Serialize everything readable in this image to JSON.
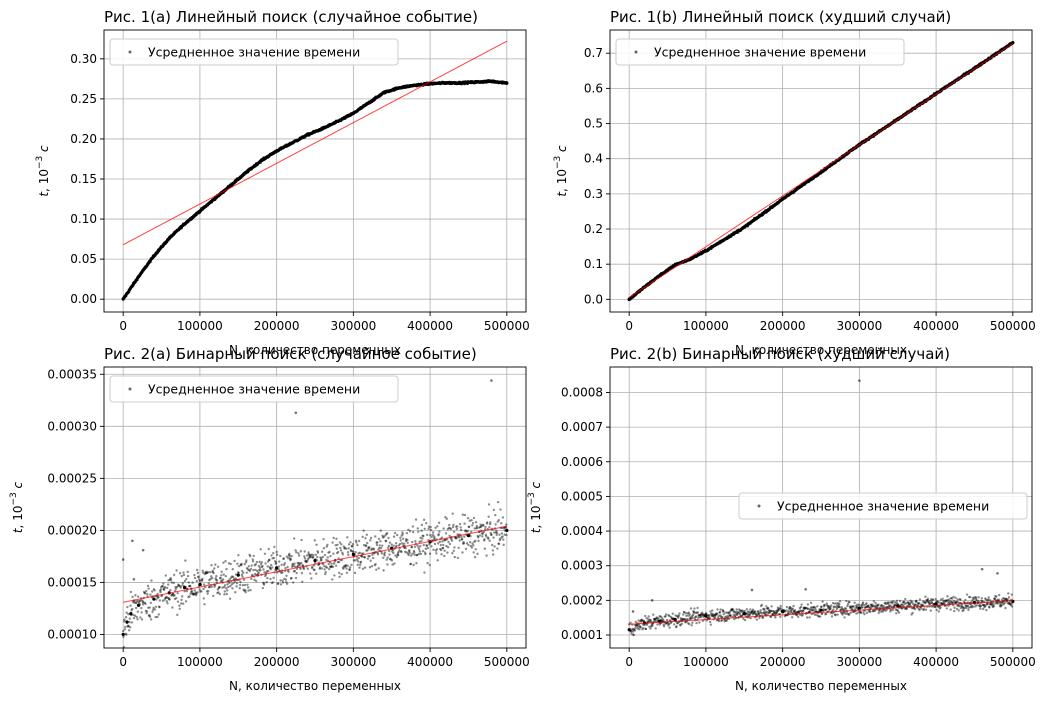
{
  "chart_data": [
    {
      "type": "scatter",
      "title": "Рис. 1(a) Линейный поиск (случайное событие)",
      "xlabel": "N, количество переменных",
      "ylabel": "t, 10^-3 с",
      "xlim": [
        -25000,
        525000
      ],
      "ylim": [
        -0.016,
        0.336
      ],
      "xticks": [
        0,
        100000,
        200000,
        300000,
        400000,
        500000
      ],
      "yticks": [
        0.0,
        0.05,
        0.1,
        0.15,
        0.2,
        0.25,
        0.3
      ],
      "ytick_labels": [
        "0.00",
        "0.05",
        "0.10",
        "0.15",
        "0.20",
        "0.25",
        "0.30"
      ],
      "grid": true,
      "legend": {
        "position": "upper-left",
        "label": "Усредненное значение времени"
      },
      "series": [
        {
          "name": "Усредненное значение времени",
          "style": "points",
          "color": "#000000",
          "x": [
            0,
            20000,
            40000,
            60000,
            80000,
            100000,
            120000,
            140000,
            160000,
            180000,
            200000,
            220000,
            240000,
            260000,
            280000,
            300000,
            320000,
            340000,
            360000,
            380000,
            400000,
            420000,
            440000,
            460000,
            480000,
            500000
          ],
          "y": [
            0.0,
            0.028,
            0.054,
            0.076,
            0.094,
            0.11,
            0.126,
            0.142,
            0.158,
            0.173,
            0.185,
            0.195,
            0.205,
            0.213,
            0.222,
            0.232,
            0.245,
            0.258,
            0.264,
            0.267,
            0.269,
            0.27,
            0.27,
            0.271,
            0.272,
            0.27
          ]
        },
        {
          "name": "",
          "style": "line",
          "color": "#ff0000",
          "x": [
            0,
            500000
          ],
          "y": [
            0.068,
            0.322
          ]
        }
      ]
    },
    {
      "type": "scatter",
      "title": "Рис. 1(b) Линейный поиск (худший случай)",
      "xlabel": "N, количество переменных",
      "ylabel": "t, 10^-3 с",
      "xlim": [
        -25000,
        525000
      ],
      "ylim": [
        -0.036,
        0.766
      ],
      "xticks": [
        0,
        100000,
        200000,
        300000,
        400000,
        500000
      ],
      "yticks": [
        0.0,
        0.1,
        0.2,
        0.3,
        0.4,
        0.5,
        0.6,
        0.7
      ],
      "ytick_labels": [
        "0.0",
        "0.1",
        "0.2",
        "0.3",
        "0.4",
        "0.5",
        "0.6",
        "0.7"
      ],
      "grid": true,
      "legend": {
        "position": "upper-left",
        "label": "Усредненное значение времени"
      },
      "series": [
        {
          "name": "Усредненное значение времени",
          "style": "points",
          "color": "#000000",
          "x": [
            0,
            20000,
            40000,
            60000,
            80000,
            100000,
            150000,
            200000,
            250000,
            300000,
            350000,
            400000,
            450000,
            500000
          ],
          "y": [
            0.0,
            0.035,
            0.068,
            0.098,
            0.115,
            0.138,
            0.205,
            0.285,
            0.362,
            0.44,
            0.512,
            0.585,
            0.657,
            0.73
          ]
        },
        {
          "name": "",
          "style": "line",
          "color": "#ff0000",
          "x": [
            0,
            500000
          ],
          "y": [
            0.005,
            0.728
          ]
        }
      ]
    },
    {
      "type": "scatter",
      "title": "Рис. 2(a) Бинарный поиск (случайное событие)",
      "xlabel": "N, количество переменных",
      "ylabel": "t, 10^-3 с",
      "xlim": [
        -25000,
        525000
      ],
      "ylim": [
        8.7e-05,
        0.000357
      ],
      "xticks": [
        0,
        100000,
        200000,
        300000,
        400000,
        500000
      ],
      "yticks": [
        0.0001,
        0.00015,
        0.0002,
        0.00025,
        0.0003,
        0.00035
      ],
      "ytick_labels": [
        "0.00010",
        "0.00015",
        "0.00020",
        "0.00025",
        "0.00030",
        "0.00035"
      ],
      "grid": true,
      "legend": {
        "position": "upper-left",
        "label": "Усредненное значение времени"
      },
      "series": [
        {
          "name": "Усредненное значение времени",
          "style": "points",
          "color": "#000000",
          "x": [
            0,
            5000,
            10000,
            20000,
            40000,
            60000,
            80000,
            100000,
            150000,
            200000,
            250000,
            300000,
            350000,
            400000,
            450000,
            500000
          ],
          "y": [
            0.0001,
            0.000112,
            0.00012,
            0.000128,
            0.000134,
            0.00014,
            0.000145,
            0.000148,
            0.000157,
            0.000164,
            0.000171,
            0.000177,
            0.000183,
            0.000189,
            0.000195,
            0.0002
          ]
        },
        {
          "name": "",
          "style": "line",
          "color": "#ff0000",
          "x": [
            0,
            500000
          ],
          "y": [
            0.000131,
            0.000204
          ]
        }
      ],
      "outliers": {
        "x": [
          0,
          12000,
          14000,
          26000,
          225000,
          480000
        ],
        "y": [
          0.000172,
          0.00019,
          0.000153,
          0.000181,
          0.000313,
          0.000344
        ]
      }
    },
    {
      "type": "scatter",
      "title": "Рис. 2(b) Бинарный поиск (худший случай)",
      "xlabel": "N, количество переменных",
      "ylabel": "t, 10^-3 с",
      "xlim": [
        -25000,
        525000
      ],
      "ylim": [
        6.25e-05,
        0.0008735
      ],
      "xticks": [
        0,
        100000,
        200000,
        300000,
        400000,
        500000
      ],
      "yticks": [
        0.0001,
        0.0002,
        0.0003,
        0.0004,
        0.0005,
        0.0006,
        0.0007,
        0.0008
      ],
      "ytick_labels": [
        "0.0001",
        "0.0002",
        "0.0003",
        "0.0004",
        "0.0005",
        "0.0006",
        "0.0007",
        "0.0008"
      ],
      "grid": true,
      "legend": {
        "position": "center-right",
        "label": "Усредненное значение времени"
      },
      "series": [
        {
          "name": "Усредненное значение времени",
          "style": "points",
          "color": "#000000",
          "x": [
            0,
            20000,
            40000,
            60000,
            100000,
            150000,
            200000,
            250000,
            300000,
            350000,
            400000,
            450000,
            500000
          ],
          "y": [
            0.000115,
            0.000135,
            0.00014,
            0.000145,
            0.000155,
            0.000162,
            0.000167,
            0.000172,
            0.000178,
            0.000184,
            0.00019,
            0.000194,
            0.000197
          ]
        },
        {
          "name": "",
          "style": "line",
          "color": "#ff0000",
          "x": [
            0,
            500000
          ],
          "y": [
            0.000131,
            0.000199
          ]
        }
      ],
      "outliers": {
        "x": [
          300000,
          5000,
          30000,
          160000,
          230000,
          460000,
          480000
        ],
        "y": [
          0.000834,
          0.000168,
          0.0002,
          0.00023,
          0.000232,
          0.00029,
          0.000278
        ]
      }
    }
  ]
}
